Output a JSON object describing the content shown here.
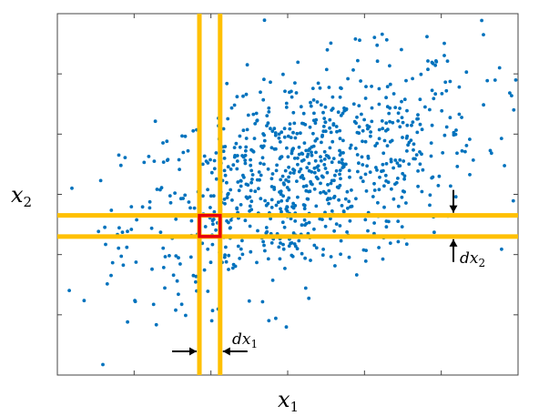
{
  "chart_data": {
    "type": "scatter",
    "title": "",
    "xlabel": "x",
    "xlabel_sub": "1",
    "ylabel": "x",
    "ylabel_sub": "2",
    "xlim": [
      0,
      6
    ],
    "ylim": [
      0,
      6
    ],
    "grid": false,
    "point_color": "#0072BD",
    "band_color": "#FFC000",
    "highlight_color": "#E8000B",
    "bands": {
      "x1_lines": [
        1.85,
        2.12
      ],
      "x2_lines": [
        2.3,
        2.65
      ]
    },
    "highlight_cell": {
      "x": [
        1.85,
        2.12
      ],
      "y": [
        2.3,
        2.65
      ]
    },
    "annotations": {
      "dx1": {
        "text": "dx",
        "sub": "1",
        "at": [
          2.12,
          0.4
        ]
      },
      "dx2": {
        "text": "dx",
        "sub": "2",
        "at": [
          5.2,
          2.3
        ]
      }
    },
    "distribution": {
      "mean": [
        3.2,
        3.3
      ],
      "sd": [
        1.15,
        0.95
      ],
      "corr": 0.45,
      "n": 900
    }
  }
}
